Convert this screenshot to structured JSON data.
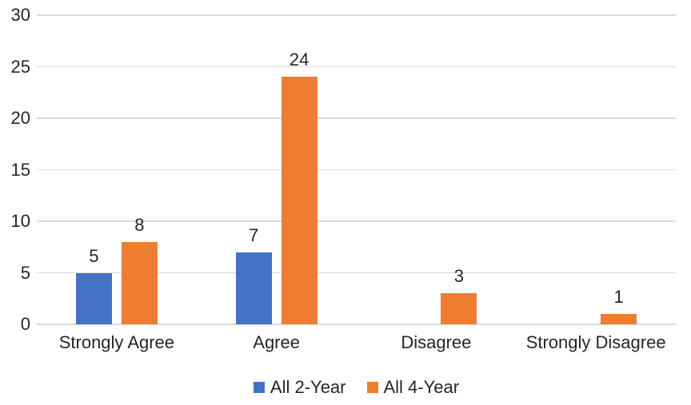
{
  "chart_data": {
    "type": "bar",
    "categories": [
      "Strongly Agree",
      "Agree",
      "Disagree",
      "Strongly Disagree"
    ],
    "series": [
      {
        "name": "All 2-Year",
        "color": "#4472C4",
        "values": [
          5,
          7,
          0,
          0
        ],
        "labels": [
          "5",
          "7",
          "",
          ""
        ]
      },
      {
        "name": "All 4-Year",
        "color": "#ED7D31",
        "values": [
          8,
          24,
          3,
          1
        ],
        "labels": [
          "8",
          "24",
          "3",
          "1"
        ]
      }
    ],
    "ylim": [
      0,
      30
    ],
    "yticks": [
      0,
      5,
      10,
      15,
      20,
      25,
      30
    ],
    "grid": true,
    "data_labels": true,
    "legend_position": "bottom",
    "gridline_color": "#D9D9D9",
    "text_color": "#262626",
    "background_color": "#FFFFFF"
  }
}
